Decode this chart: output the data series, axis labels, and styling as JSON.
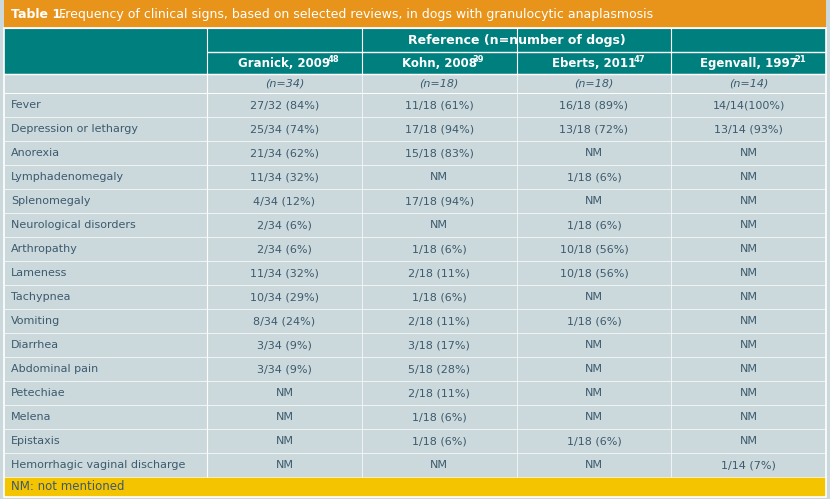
{
  "title_bold": "Table 1.",
  "title_rest": " Frequency of clinical signs, based on selected reviews, in dogs with granulocytic anaplasmosis",
  "title_bg": "#E8941A",
  "header1_text": "Reference (n=number of dogs)",
  "header_bg": "#007F7F",
  "col_headers": [
    "Granick, 2009",
    "Kohn, 2008",
    "Eberts, 2011",
    "Egenvall, 1997"
  ],
  "col_superscripts": [
    "48",
    "39",
    "47",
    "21"
  ],
  "n_row": [
    "(n=34)",
    "(n=18)",
    "(n=18)",
    "(n=14)"
  ],
  "row_labels": [
    "Fever",
    "Depression or lethargy",
    "Anorexia",
    "Lymphadenomegaly",
    "Splenomegaly",
    "Neurological disorders",
    "Arthropathy",
    "Lameness",
    "Tachypnea",
    "Vomiting",
    "Diarrhea",
    "Abdominal pain",
    "Petechiae",
    "Melena",
    "Epistaxis",
    "Hemorrhagic vaginal discharge"
  ],
  "table_data": [
    [
      "27/32 (84%)",
      "11/18 (61%)",
      "16/18 (89%)",
      "14/14(100%)"
    ],
    [
      "25/34 (74%)",
      "17/18 (94%)",
      "13/18 (72%)",
      "13/14 (93%)"
    ],
    [
      "21/34 (62%)",
      "15/18 (83%)",
      "NM",
      "NM"
    ],
    [
      "11/34 (32%)",
      "NM",
      "1/18 (6%)",
      "NM"
    ],
    [
      "4/34 (12%)",
      "17/18 (94%)",
      "NM",
      "NM"
    ],
    [
      "2/34 (6%)",
      "NM",
      "1/18 (6%)",
      "NM"
    ],
    [
      "2/34 (6%)",
      "1/18 (6%)",
      "10/18 (56%)",
      "NM"
    ],
    [
      "11/34 (32%)",
      "2/18 (11%)",
      "10/18 (56%)",
      "NM"
    ],
    [
      "10/34 (29%)",
      "1/18 (6%)",
      "NM",
      "NM"
    ],
    [
      "8/34 (24%)",
      "2/18 (11%)",
      "1/18 (6%)",
      "NM"
    ],
    [
      "3/34 (9%)",
      "3/18 (17%)",
      "NM",
      "NM"
    ],
    [
      "3/34 (9%)",
      "5/18 (28%)",
      "NM",
      "NM"
    ],
    [
      "NM",
      "2/18 (11%)",
      "NM",
      "NM"
    ],
    [
      "NM",
      "1/18 (6%)",
      "NM",
      "NM"
    ],
    [
      "NM",
      "1/18 (6%)",
      "1/18 (6%)",
      "NM"
    ],
    [
      "NM",
      "NM",
      "NM",
      "1/14 (7%)"
    ]
  ],
  "body_bg": "#CBD9DC",
  "text_color_data": "#3D5A6E",
  "text_color_label": "#3D5A6E",
  "footer_text": "NM: not mentioned",
  "footer_bg": "#F5C400",
  "white": "#FFFFFF"
}
